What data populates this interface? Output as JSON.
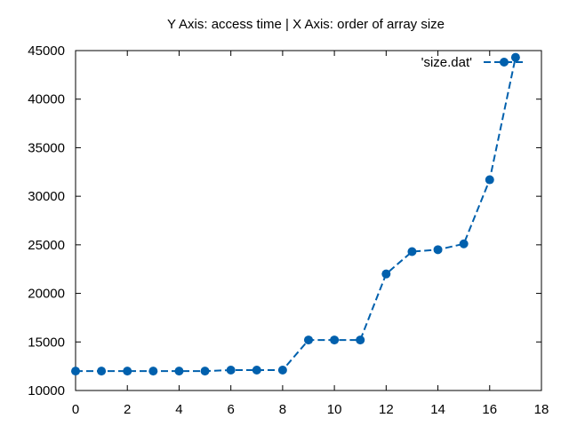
{
  "chart_data": {
    "type": "line",
    "title": "Y Axis: access time | X Axis: order of array size",
    "xlabel": "",
    "ylabel": "",
    "xlim": [
      0,
      18
    ],
    "ylim": [
      10000,
      45000
    ],
    "xticks": [
      0,
      2,
      4,
      6,
      8,
      10,
      12,
      14,
      16,
      18
    ],
    "yticks": [
      10000,
      15000,
      20000,
      25000,
      30000,
      35000,
      40000,
      45000
    ],
    "grid": false,
    "legend_position": "top-right",
    "series": [
      {
        "name": "'size.dat'",
        "color": "#0060ad",
        "line_style": "dashed",
        "marker": "circle",
        "x": [
          0,
          1,
          2,
          3,
          4,
          5,
          6,
          7,
          8,
          9,
          10,
          11,
          12,
          13,
          14,
          15,
          16,
          17
        ],
        "y": [
          12000,
          12000,
          12000,
          12000,
          12000,
          12000,
          12100,
          12100,
          12100,
          15200,
          15200,
          15200,
          22000,
          24300,
          24500,
          25100,
          31700,
          44300
        ]
      }
    ]
  }
}
